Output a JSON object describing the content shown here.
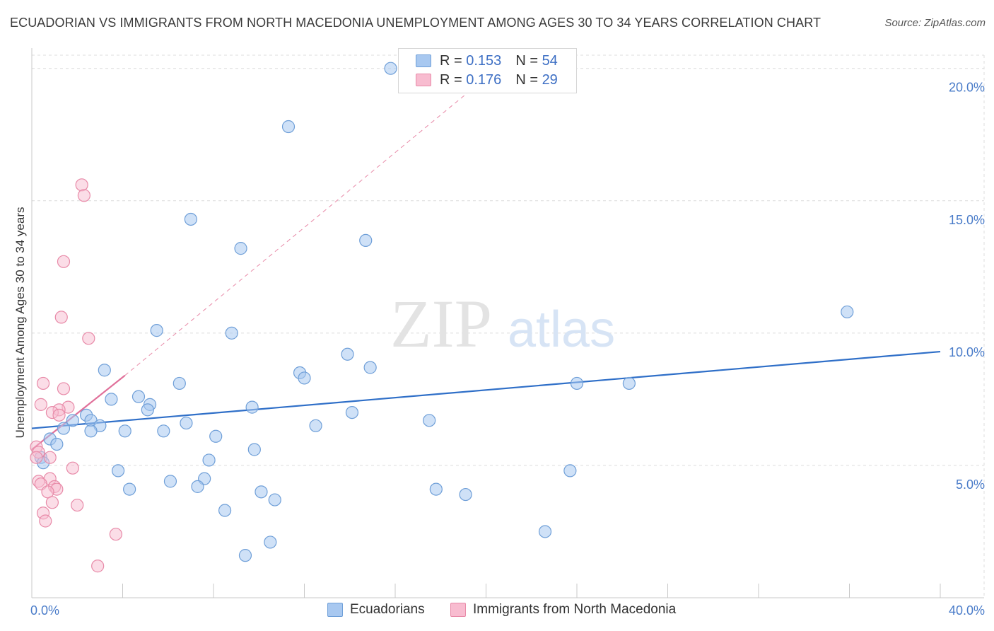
{
  "title": "ECUADORIAN VS IMMIGRANTS FROM NORTH MACEDONIA UNEMPLOYMENT AMONG AGES 30 TO 34 YEARS CORRELATION CHART",
  "source": "Source: ZipAtlas.com",
  "watermark": {
    "zip": "ZIP",
    "atlas": "atlas"
  },
  "legend": {
    "series1": {
      "r_label": "R =",
      "r_value": "0.153",
      "n_label": "N =",
      "n_value": "54"
    },
    "series2": {
      "r_label": "R =",
      "r_value": "0.176",
      "n_label": "N =",
      "n_value": "29"
    }
  },
  "colors": {
    "blue_fill": "#a8c8f0",
    "blue_stroke": "#6f9fd8",
    "blue_line": "#2f6fc8",
    "pink_fill": "#f8bcd0",
    "pink_stroke": "#e88aa8",
    "pink_line": "#e0709a",
    "grid": "#dcdcdc",
    "tick_text": "#4a7cc9"
  },
  "chart_data": {
    "type": "scatter",
    "title": "ECUADORIAN VS IMMIGRANTS FROM NORTH MACEDONIA UNEMPLOYMENT AMONG AGES 30 TO 34 YEARS CORRELATION CHART",
    "xlabel": "",
    "ylabel": "Unemployment Among Ages 30 to 34 years",
    "xlim": [
      0,
      40
    ],
    "ylim": [
      0,
      20.5
    ],
    "x_tick_labels": {
      "left": "0.0%",
      "right": "40.0%"
    },
    "y_ticks": [
      {
        "value": 5,
        "label": "5.0%"
      },
      {
        "value": 10,
        "label": "10.0%"
      },
      {
        "value": 15,
        "label": "15.0%"
      },
      {
        "value": 20,
        "label": "20.0%"
      }
    ],
    "series": [
      {
        "name": "Ecuadorians",
        "color": "#a8c8f0",
        "trend": {
          "x0": 0,
          "y0": 6.4,
          "x1": 40,
          "y1": 9.3
        },
        "points": [
          [
            15.8,
            20.0
          ],
          [
            11.3,
            17.8
          ],
          [
            7.0,
            14.3
          ],
          [
            14.7,
            13.5
          ],
          [
            9.2,
            13.2
          ],
          [
            35.9,
            10.8
          ],
          [
            5.5,
            10.1
          ],
          [
            8.8,
            10.0
          ],
          [
            13.9,
            9.2
          ],
          [
            3.2,
            8.6
          ],
          [
            14.9,
            8.7
          ],
          [
            11.8,
            8.5
          ],
          [
            12.0,
            8.3
          ],
          [
            6.5,
            8.1
          ],
          [
            24.0,
            8.1
          ],
          [
            26.3,
            8.1
          ],
          [
            4.7,
            7.6
          ],
          [
            3.5,
            7.5
          ],
          [
            5.2,
            7.3
          ],
          [
            5.1,
            7.1
          ],
          [
            9.7,
            7.2
          ],
          [
            14.1,
            7.0
          ],
          [
            2.4,
            6.9
          ],
          [
            1.8,
            6.7
          ],
          [
            2.6,
            6.7
          ],
          [
            17.5,
            6.7
          ],
          [
            6.8,
            6.6
          ],
          [
            3.0,
            6.5
          ],
          [
            1.4,
            6.4
          ],
          [
            12.5,
            6.5
          ],
          [
            2.6,
            6.3
          ],
          [
            4.1,
            6.3
          ],
          [
            5.8,
            6.3
          ],
          [
            8.1,
            6.1
          ],
          [
            0.8,
            6.0
          ],
          [
            1.1,
            5.8
          ],
          [
            9.8,
            5.6
          ],
          [
            0.4,
            5.3
          ],
          [
            0.5,
            5.1
          ],
          [
            7.8,
            5.2
          ],
          [
            3.8,
            4.8
          ],
          [
            23.7,
            4.8
          ],
          [
            7.6,
            4.5
          ],
          [
            6.1,
            4.4
          ],
          [
            4.3,
            4.1
          ],
          [
            7.3,
            4.2
          ],
          [
            17.8,
            4.1
          ],
          [
            10.1,
            4.0
          ],
          [
            19.1,
            3.9
          ],
          [
            10.7,
            3.7
          ],
          [
            8.5,
            3.3
          ],
          [
            22.6,
            2.5
          ],
          [
            10.5,
            2.1
          ],
          [
            9.4,
            1.6
          ]
        ]
      },
      {
        "name": "Immigrants from North Macedonia",
        "color": "#f8bcd0",
        "trend": {
          "x0": 0,
          "y0": 5.6,
          "x1": 4.1,
          "y1": 8.4,
          "extended_x1": 19.5,
          "extended_y1": 19.3
        },
        "points": [
          [
            2.2,
            15.6
          ],
          [
            2.3,
            15.2
          ],
          [
            1.4,
            12.7
          ],
          [
            1.3,
            10.6
          ],
          [
            2.5,
            9.8
          ],
          [
            0.5,
            8.1
          ],
          [
            1.4,
            7.9
          ],
          [
            0.4,
            7.3
          ],
          [
            1.6,
            7.2
          ],
          [
            1.2,
            7.1
          ],
          [
            0.9,
            7.0
          ],
          [
            1.2,
            6.9
          ],
          [
            0.2,
            5.7
          ],
          [
            0.3,
            5.5
          ],
          [
            0.8,
            5.3
          ],
          [
            0.2,
            5.3
          ],
          [
            1.8,
            4.9
          ],
          [
            0.3,
            4.4
          ],
          [
            0.8,
            4.5
          ],
          [
            0.4,
            4.3
          ],
          [
            1.0,
            4.2
          ],
          [
            1.1,
            4.1
          ],
          [
            0.7,
            4.0
          ],
          [
            0.9,
            3.6
          ],
          [
            2.0,
            3.5
          ],
          [
            0.5,
            3.2
          ],
          [
            0.6,
            2.9
          ],
          [
            3.7,
            2.4
          ],
          [
            2.9,
            1.2
          ]
        ]
      }
    ]
  }
}
